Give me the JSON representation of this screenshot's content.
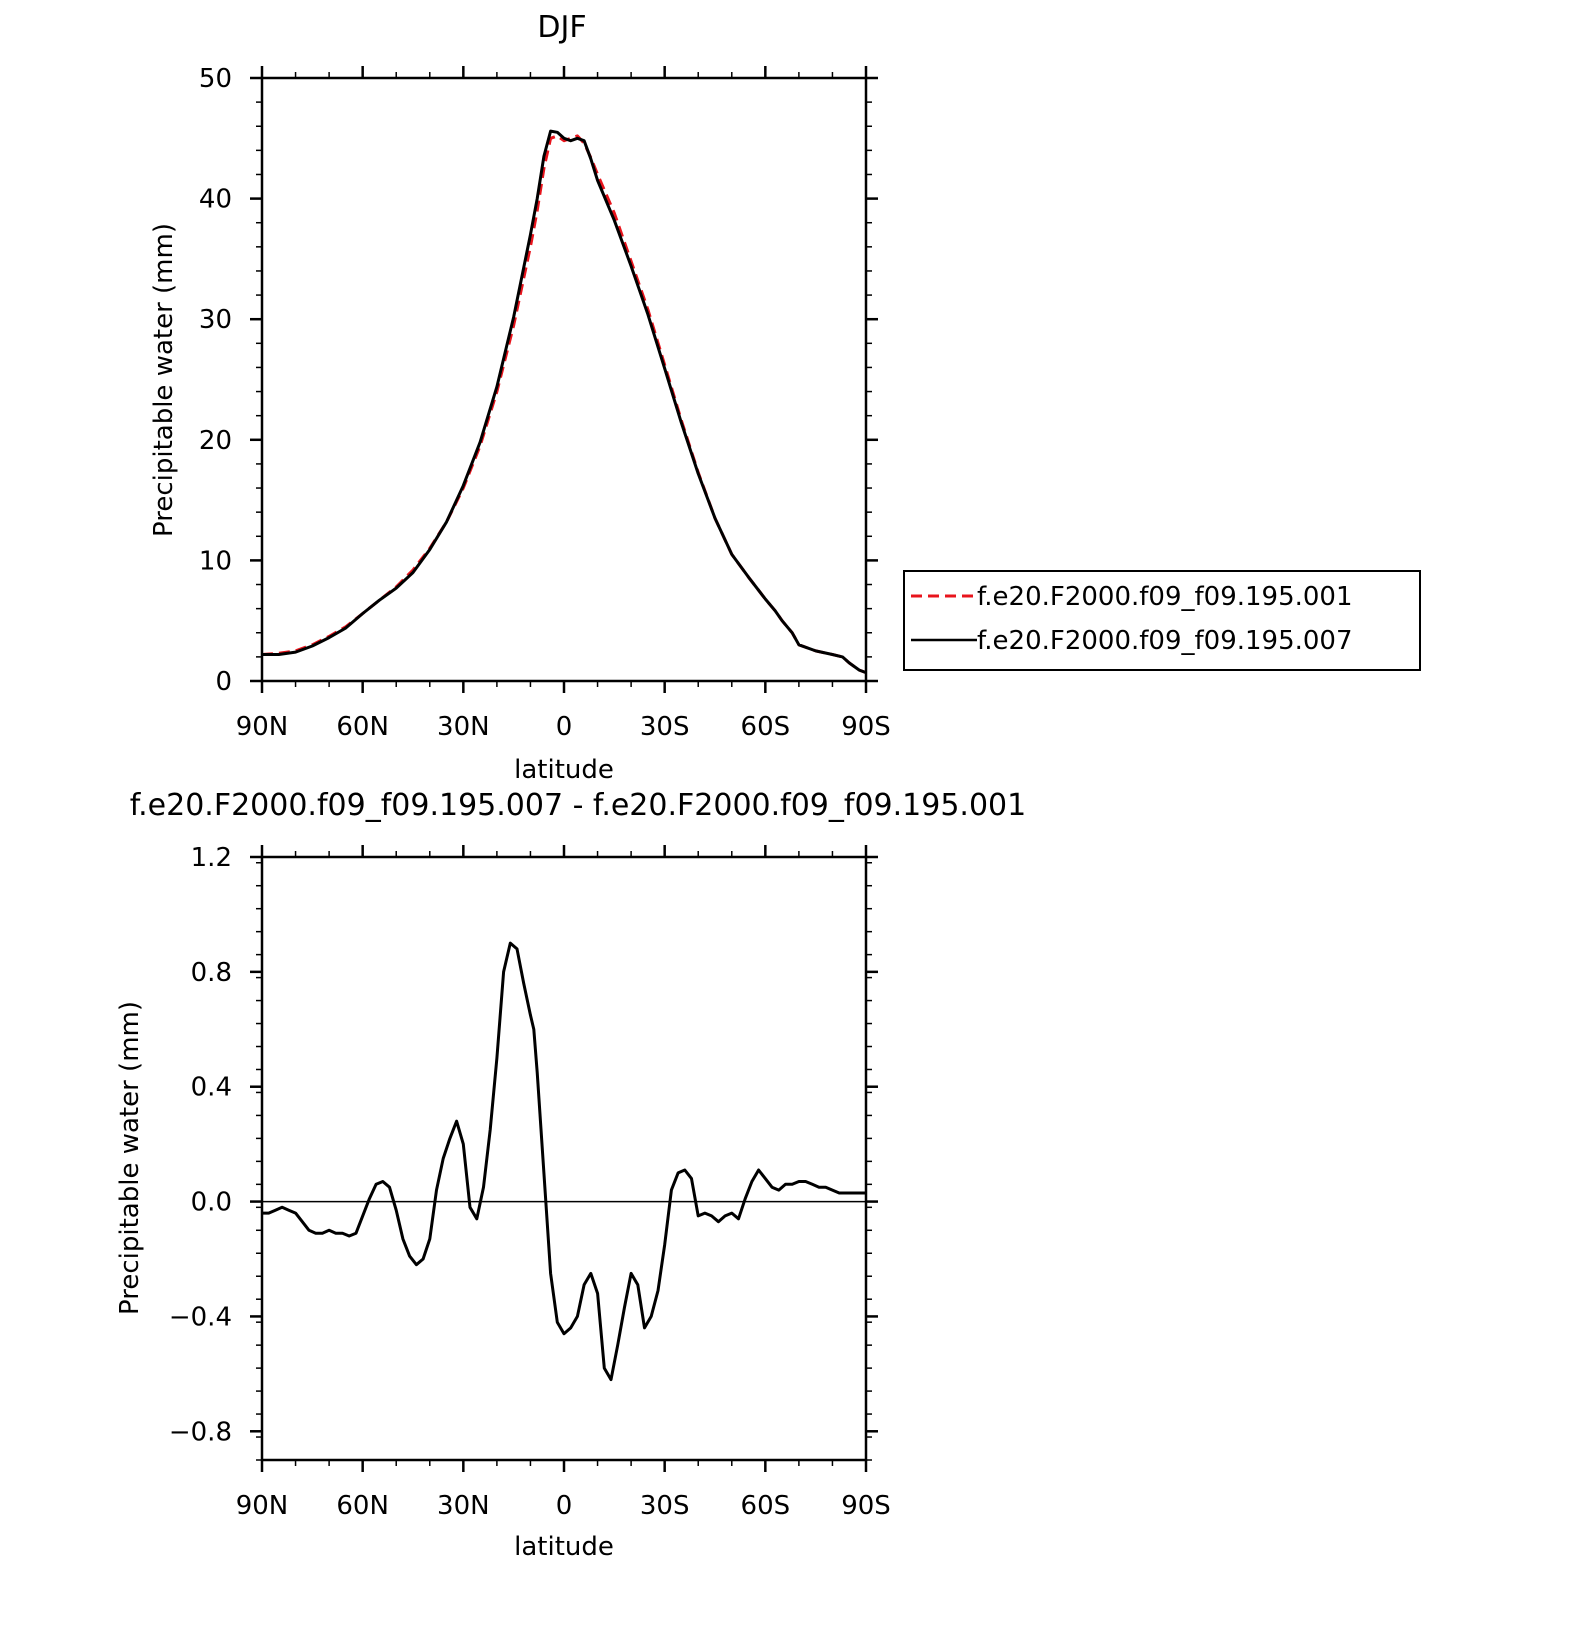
{
  "chart_data": [
    {
      "type": "line",
      "title": "DJF",
      "xlabel": "latitude",
      "ylabel": "Precipitable water (mm)",
      "xlim": [
        90,
        -90
      ],
      "ylim": [
        0,
        50
      ],
      "x_ticks": [
        90,
        60,
        30,
        0,
        -30,
        -60,
        -90
      ],
      "x_tick_labels": [
        "90N",
        "60N",
        "30N",
        "0",
        "30S",
        "60S",
        "90S"
      ],
      "y_ticks": [
        0,
        10,
        20,
        30,
        40,
        50
      ],
      "y_tick_labels": [
        "0",
        "10",
        "20",
        "30",
        "40",
        "50"
      ],
      "legend_position": "right",
      "series": [
        {
          "name": "f.e20.F2000.f09_f09.195.001",
          "color": "#e8141c",
          "style": "dashed",
          "x": [
            90,
            85,
            80,
            75,
            70,
            65,
            60,
            55,
            50,
            45,
            40,
            35,
            30,
            25,
            20,
            15,
            10,
            8,
            6,
            4,
            2,
            0,
            -2,
            -4,
            -6,
            -8,
            -10,
            -15,
            -20,
            -25,
            -30,
            -35,
            -40,
            -45,
            -50,
            -55,
            -60,
            -63,
            -65,
            -68,
            -70,
            -75,
            -80,
            -83,
            -85,
            -88,
            -90
          ],
          "values": [
            2.2,
            2.3,
            2.5,
            3.0,
            3.7,
            4.5,
            5.6,
            6.7,
            7.8,
            9.2,
            11.0,
            13.2,
            16.0,
            19.5,
            24.0,
            29.5,
            36.0,
            39.0,
            42.5,
            45.0,
            45.2,
            44.8,
            45.0,
            45.2,
            44.6,
            43.4,
            42.0,
            38.8,
            34.8,
            30.8,
            26.2,
            21.6,
            17.3,
            13.5,
            10.5,
            8.6,
            6.8,
            5.8,
            5.0,
            4.0,
            3.0,
            2.5,
            2.2,
            2.0,
            1.5,
            0.9,
            0.7
          ]
        },
        {
          "name": "f.e20.F2000.f09_f09.195.007",
          "color": "#000000",
          "style": "solid",
          "x": [
            90,
            85,
            80,
            75,
            70,
            65,
            60,
            55,
            50,
            45,
            40,
            35,
            30,
            25,
            20,
            15,
            10,
            8,
            6,
            4,
            2,
            0,
            -2,
            -4,
            -6,
            -8,
            -10,
            -15,
            -20,
            -25,
            -30,
            -35,
            -40,
            -45,
            -50,
            -55,
            -60,
            -63,
            -65,
            -68,
            -70,
            -75,
            -80,
            -83,
            -85,
            -88,
            -90
          ],
          "values": [
            2.2,
            2.2,
            2.4,
            2.9,
            3.6,
            4.4,
            5.6,
            6.7,
            7.7,
            9.0,
            10.9,
            13.2,
            16.2,
            19.8,
            24.4,
            30.2,
            37.0,
            40.0,
            43.5,
            45.6,
            45.5,
            45.0,
            44.8,
            45.0,
            44.8,
            43.3,
            41.5,
            38.2,
            34.4,
            30.4,
            25.9,
            21.4,
            17.2,
            13.5,
            10.5,
            8.6,
            6.8,
            5.8,
            5.0,
            4.0,
            3.0,
            2.5,
            2.2,
            2.0,
            1.5,
            0.9,
            0.7
          ]
        }
      ]
    },
    {
      "type": "line",
      "title": "f.e20.F2000.f09_f09.195.007 - f.e20.F2000.f09_f09.195.001",
      "xlabel": "latitude",
      "ylabel": "Precipitable water (mm)",
      "xlim": [
        90,
        -90
      ],
      "ylim": [
        -0.9,
        1.2
      ],
      "x_ticks": [
        90,
        60,
        30,
        0,
        -30,
        -60,
        -90
      ],
      "x_tick_labels": [
        "90N",
        "60N",
        "30N",
        "0",
        "30S",
        "60S",
        "90S"
      ],
      "y_ticks": [
        -0.8,
        -0.4,
        0.0,
        0.4,
        0.8,
        1.2
      ],
      "y_tick_labels": [
        "-0.8",
        "-0.4",
        "0.0",
        "0.4",
        "0.8",
        "1.2"
      ],
      "series": [
        {
          "color": "#000000",
          "style": "solid",
          "x": [
            90,
            88,
            86,
            84,
            82,
            80,
            78,
            76,
            74,
            72,
            70,
            68,
            66,
            64,
            62,
            60,
            58,
            56,
            54,
            52,
            50,
            48,
            46,
            44,
            42,
            40,
            38,
            36,
            34,
            32,
            30,
            28,
            26,
            24,
            22,
            20,
            18,
            16,
            14,
            12,
            10,
            9,
            8,
            6,
            4,
            2,
            0,
            -2,
            -4,
            -6,
            -8,
            -10,
            -12,
            -14,
            -16,
            -18,
            -20,
            -22,
            -24,
            -26,
            -28,
            -30,
            -32,
            -34,
            -36,
            -38,
            -40,
            -42,
            -44,
            -46,
            -48,
            -50,
            -52,
            -54,
            -56,
            -58,
            -60,
            -62,
            -64,
            -66,
            -68,
            -70,
            -72,
            -74,
            -76,
            -78,
            -80,
            -82,
            -84,
            -86,
            -88,
            -90
          ],
          "values": [
            -0.04,
            -0.04,
            -0.03,
            -0.02,
            -0.03,
            -0.04,
            -0.07,
            -0.1,
            -0.11,
            -0.11,
            -0.1,
            -0.11,
            -0.11,
            -0.12,
            -0.11,
            -0.05,
            0.01,
            0.06,
            0.07,
            0.05,
            -0.03,
            -0.13,
            -0.19,
            -0.22,
            -0.2,
            -0.13,
            0.04,
            0.15,
            0.22,
            0.28,
            0.2,
            -0.02,
            -0.06,
            0.05,
            0.25,
            0.5,
            0.8,
            0.9,
            0.88,
            0.76,
            0.65,
            0.6,
            0.45,
            0.1,
            -0.25,
            -0.42,
            -0.46,
            -0.44,
            -0.4,
            -0.29,
            -0.25,
            -0.32,
            -0.58,
            -0.62,
            -0.5,
            -0.37,
            -0.25,
            -0.29,
            -0.44,
            -0.4,
            -0.31,
            -0.15,
            0.04,
            0.1,
            0.11,
            0.08,
            -0.05,
            -0.04,
            -0.05,
            -0.07,
            -0.05,
            -0.04,
            -0.06,
            0.01,
            0.07,
            0.11,
            0.08,
            0.05,
            0.04,
            0.06,
            0.06,
            0.07,
            0.07,
            0.06,
            0.05,
            0.05,
            0.04,
            0.03,
            0.03,
            0.03,
            0.03,
            0.03
          ]
        }
      ]
    }
  ]
}
